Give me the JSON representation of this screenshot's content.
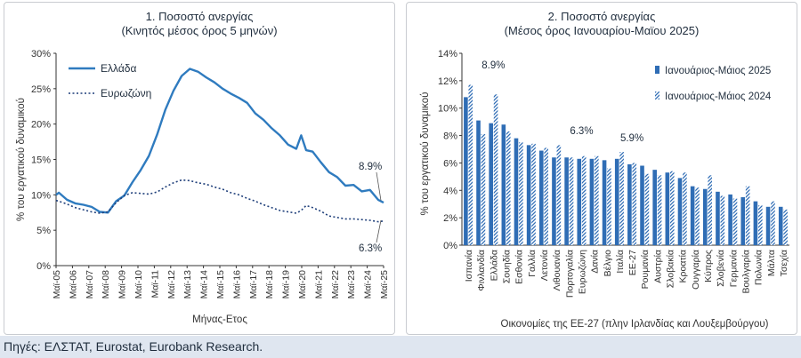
{
  "footer": {
    "source": "Πηγές: ΕΛΣΤΑΤ, Eurostat, Eurobank Research."
  },
  "chart_data": [
    {
      "type": "line",
      "title": "1. Ποσοστό ανεργίας",
      "subtitle": "(Κινητός μέσος όρος 5 μηνών)",
      "xlabel": "Μήνας-Ετος",
      "ylabel": "% του εργατικού δυναμικού",
      "ylim": [
        0,
        30
      ],
      "yticks": [
        "0%",
        "5%",
        "10%",
        "15%",
        "20%",
        "25%",
        "30%"
      ],
      "xticks": [
        "Μαϊ-05",
        "Μαϊ-06",
        "Μαϊ-07",
        "Μαϊ-08",
        "Μαϊ-09",
        "Μαϊ-10",
        "Μαϊ-11",
        "Μαϊ-12",
        "Μαϊ-13",
        "Μαϊ-14",
        "Μαϊ-15",
        "Μαϊ-16",
        "Μαϊ-17",
        "Μαϊ-18",
        "Μαϊ-19",
        "Μαϊ-20",
        "Μαϊ-21",
        "Μαϊ-22",
        "Μαϊ-23",
        "Μαϊ-24",
        "Μαϊ-25"
      ],
      "grid": false,
      "legend_position": "top-left",
      "x_years": [
        2005.33,
        2005.5,
        2006.0,
        2006.5,
        2007.0,
        2007.5,
        2008.0,
        2008.5,
        2009.0,
        2009.5,
        2010.0,
        2010.5,
        2011.0,
        2011.5,
        2012.0,
        2012.5,
        2013.0,
        2013.5,
        2014.0,
        2014.5,
        2015.0,
        2015.5,
        2016.0,
        2016.5,
        2017.0,
        2017.5,
        2018.0,
        2018.5,
        2019.0,
        2019.5,
        2020.0,
        2020.3,
        2020.6,
        2021.0,
        2021.5,
        2022.0,
        2022.5,
        2023.0,
        2023.5,
        2024.0,
        2024.5,
        2025.0,
        2025.33
      ],
      "series": [
        {
          "name": "Ελλάδα",
          "style": "solid",
          "color": "#2f7bbf",
          "values": [
            10.0,
            10.3,
            9.3,
            8.8,
            8.6,
            8.3,
            7.6,
            7.5,
            9.1,
            9.9,
            11.8,
            13.5,
            15.5,
            18.5,
            22.0,
            24.7,
            26.8,
            27.8,
            27.4,
            26.6,
            25.9,
            25.0,
            24.3,
            23.7,
            23.0,
            21.5,
            20.6,
            19.4,
            18.4,
            17.1,
            16.5,
            18.4,
            16.3,
            16.1,
            14.6,
            13.2,
            12.5,
            11.3,
            11.4,
            10.5,
            10.7,
            9.3,
            8.9
          ]
        },
        {
          "name": "Ευρωζώνη",
          "style": "dotted",
          "color": "#1f3f7a",
          "values": [
            9.2,
            9.1,
            8.7,
            8.2,
            7.9,
            7.6,
            7.4,
            7.6,
            8.9,
            9.9,
            10.3,
            10.2,
            10.1,
            10.4,
            11.1,
            11.7,
            12.1,
            12.0,
            11.7,
            11.5,
            11.1,
            10.8,
            10.3,
            10.0,
            9.5,
            9.1,
            8.6,
            8.2,
            7.8,
            7.6,
            7.4,
            7.8,
            8.5,
            8.2,
            7.7,
            7.0,
            6.8,
            6.6,
            6.6,
            6.5,
            6.4,
            6.2,
            6.3
          ]
        }
      ],
      "annotations": [
        "8.9%",
        "6.3%"
      ]
    },
    {
      "type": "bar",
      "title": "2. Ποσοστό ανεργίας",
      "subtitle": "(Μέσος όρος Ιανουαρίου-Μαϊου 2025)",
      "xlabel": "Οικονομίες της ΕΕ-27 (πλην Ιρλανδίας και Λουξεμβούργου)",
      "ylabel": "% του εργατικού δυναμικού",
      "ylim": [
        0,
        14
      ],
      "yticks": [
        "0%",
        "2%",
        "4%",
        "6%",
        "8%",
        "10%",
        "12%",
        "14%"
      ],
      "grid": false,
      "legend_position": "top-right",
      "categories": [
        "Ισπανία",
        "Φινλανδία",
        "Ελλάδα",
        "Σουηδία",
        "Εσθονία",
        "Γαλλία",
        "Λετονία",
        "Λιθουανία",
        "Πορτογαλία",
        "Ευρωζώνη",
        "Δανία",
        "Βέλγιο",
        "Ιταλία",
        "ΕΕ-27",
        "Ρουμανία",
        "Αυστρία",
        "Σλοβακία",
        "Κροατία",
        "Ουγγαρία",
        "Κύπρος",
        "Σλοβενία",
        "Γερμανία",
        "Βουλγαρία",
        "Πολωνία",
        "Μάλτα",
        "Τσεχία"
      ],
      "series": [
        {
          "name": "Ιανουάριος-Μάιος 2025",
          "color": "#2f6db5",
          "pattern": "solid",
          "values": [
            10.8,
            9.1,
            8.9,
            8.8,
            7.8,
            7.3,
            6.9,
            6.4,
            6.4,
            6.3,
            6.3,
            6.2,
            6.3,
            5.9,
            5.8,
            5.5,
            5.3,
            4.9,
            4.3,
            4.1,
            3.9,
            3.7,
            3.5,
            3.2,
            2.8,
            2.8
          ]
        },
        {
          "name": "Ιανουάριος-Μάιος 2024",
          "color": "#2f6db5",
          "pattern": "hatched",
          "values": [
            11.7,
            8.1,
            11.0,
            8.3,
            7.5,
            7.4,
            7.1,
            7.3,
            6.4,
            6.5,
            6.5,
            5.6,
            6.8,
            6.0,
            5.2,
            5.1,
            5.4,
            5.3,
            4.2,
            5.1,
            3.6,
            3.4,
            4.3,
            2.9,
            3.2,
            2.6
          ]
        }
      ],
      "annotations": [
        "8.9%",
        "6.3%",
        "5.9%"
      ]
    }
  ]
}
